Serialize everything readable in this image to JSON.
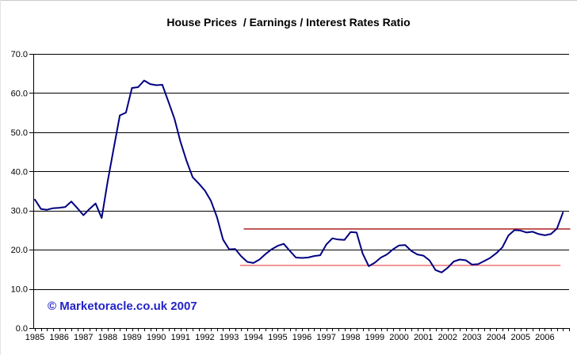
{
  "chart": {
    "title": "House Prices  / Earnings / Interest Rates Ratio",
    "watermark": "© Marketoracle.co.uk 2007"
  },
  "chart_data": {
    "type": "line",
    "title": "House Prices  / Earnings / Interest Rates Ratio",
    "xlabel": "",
    "ylabel": "",
    "ylim": [
      0,
      70
    ],
    "y_tick_labels": [
      "0.0",
      "10.0",
      "20.0",
      "30.0",
      "40.0",
      "50.0",
      "60.0",
      "70.0"
    ],
    "x_tick_years": [
      "1985",
      "1986",
      "1987",
      "1988",
      "1989",
      "1990",
      "1991",
      "1992",
      "1993",
      "1994",
      "1995",
      "1996",
      "1997",
      "1998",
      "1999",
      "2000",
      "2001",
      "2002",
      "2003",
      "2004",
      "2005",
      "2006"
    ],
    "x_start_year": 1985,
    "x_end_year": 2007,
    "frequency": "quarterly",
    "grid": "horizontal-black-lines",
    "legend": "none",
    "series": [
      {
        "name": "house-prices-earnings-interest-rates-ratio",
        "color": "#000080",
        "start": "1985 Q1",
        "values": [
          32.8,
          30.4,
          30.2,
          30.6,
          30.7,
          30.9,
          32.3,
          30.6,
          28.8,
          30.4,
          31.8,
          28.1,
          37.5,
          46.0,
          54.3,
          55.0,
          61.3,
          61.5,
          63.2,
          62.3,
          62.0,
          62.1,
          57.8,
          53.4,
          47.5,
          42.6,
          38.5,
          36.9,
          35.1,
          32.5,
          28.3,
          22.6,
          20.1,
          20.2,
          18.3,
          16.9,
          16.6,
          17.5,
          18.9,
          20.1,
          21.0,
          21.5,
          19.7,
          18.0,
          17.9,
          18.0,
          18.4,
          18.6,
          21.3,
          22.9,
          22.6,
          22.5,
          24.5,
          24.4,
          19.0,
          15.8,
          16.7,
          18.0,
          18.8,
          20.1,
          21.1,
          21.2,
          19.7,
          18.8,
          18.5,
          17.3,
          14.8,
          14.2,
          15.4,
          17.0,
          17.5,
          17.3,
          16.2,
          16.3,
          17.1,
          17.9,
          19.1,
          20.6,
          23.6,
          25.0,
          24.9,
          24.4,
          24.6,
          24.0,
          23.7,
          24.0,
          25.4,
          29.5
        ]
      }
    ],
    "reference_lines": [
      {
        "name": "upper-band-line",
        "value": 25.3,
        "from_year": 1993.6,
        "to_year": 2007.05,
        "color": "#b03330"
      },
      {
        "name": "lower-band-line",
        "value": 16.0,
        "from_year": 1993.45,
        "to_year": 2006.65,
        "color": "#ee7d7d"
      }
    ],
    "colors": {
      "gridline": "#000000",
      "axis": "#000000",
      "background": "#ffffff"
    }
  }
}
